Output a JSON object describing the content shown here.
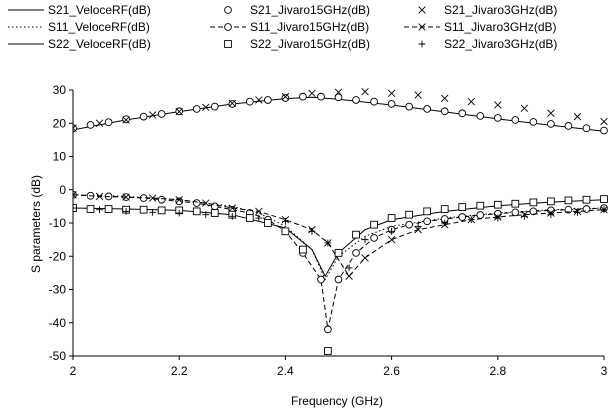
{
  "chart_data": {
    "type": "line",
    "title": "",
    "xlabel": "Frequency (GHz)",
    "ylabel": "S parameters (dB)",
    "xlim": [
      2,
      3
    ],
    "ylim": [
      -50,
      30
    ],
    "x_ticks": [
      "2",
      "2.2",
      "2.4",
      "2.6",
      "2.8",
      "3"
    ],
    "y_ticks": [
      "30",
      "20",
      "10",
      "0",
      "-10",
      "-20",
      "-30",
      "-40",
      "-50"
    ],
    "legend_position": "top",
    "colors": {
      "ink": "#000000",
      "background": "#ffffff"
    },
    "series": [
      {
        "name": "S21_VeloceRF(dB)",
        "style": "solid-line",
        "points": [
          [
            2.0,
            18
          ],
          [
            2.1,
            21
          ],
          [
            2.2,
            23.5
          ],
          [
            2.3,
            25.8
          ],
          [
            2.4,
            27.4
          ],
          [
            2.45,
            27.8
          ],
          [
            2.5,
            27.2
          ],
          [
            2.6,
            25.5
          ],
          [
            2.7,
            23.4
          ],
          [
            2.8,
            21.3
          ],
          [
            2.9,
            19.4
          ],
          [
            3.0,
            17.6
          ]
        ]
      },
      {
        "name": "S11_VeloceRF(dB)",
        "style": "dotted-line",
        "points": [
          [
            2.0,
            -1.5
          ],
          [
            2.1,
            -2
          ],
          [
            2.2,
            -3
          ],
          [
            2.3,
            -5
          ],
          [
            2.35,
            -7
          ],
          [
            2.4,
            -11
          ],
          [
            2.45,
            -18
          ],
          [
            2.475,
            -27
          ],
          [
            2.5,
            -20
          ],
          [
            2.55,
            -14
          ],
          [
            2.6,
            -11
          ],
          [
            2.7,
            -8.5
          ],
          [
            2.8,
            -7
          ],
          [
            2.9,
            -6
          ],
          [
            3.0,
            -5.5
          ]
        ]
      },
      {
        "name": "S22_VeloceRF(dB)",
        "style": "solid-line",
        "points": [
          [
            2.0,
            -5.5
          ],
          [
            2.1,
            -5.8
          ],
          [
            2.2,
            -6.2
          ],
          [
            2.3,
            -7.5
          ],
          [
            2.4,
            -11.5
          ],
          [
            2.45,
            -18
          ],
          [
            2.475,
            -26
          ],
          [
            2.5,
            -19
          ],
          [
            2.55,
            -12
          ],
          [
            2.6,
            -9
          ],
          [
            2.7,
            -6.5
          ],
          [
            2.8,
            -4.8
          ],
          [
            2.9,
            -3.7
          ],
          [
            3.0,
            -3
          ]
        ]
      },
      {
        "name": "S21_Jivaro15GHz(dB)",
        "style": "circle-markers",
        "points": [
          [
            2.0,
            18.5
          ],
          [
            2.033,
            19.5
          ],
          [
            2.067,
            20.3
          ],
          [
            2.1,
            21.2
          ],
          [
            2.133,
            22
          ],
          [
            2.167,
            22.8
          ],
          [
            2.2,
            23.6
          ],
          [
            2.233,
            24.3
          ],
          [
            2.267,
            25
          ],
          [
            2.3,
            25.8
          ],
          [
            2.333,
            26.5
          ],
          [
            2.367,
            27
          ],
          [
            2.4,
            27.6
          ],
          [
            2.433,
            28
          ],
          [
            2.467,
            28
          ],
          [
            2.5,
            27.8
          ],
          [
            2.533,
            27
          ],
          [
            2.567,
            26.5
          ],
          [
            2.6,
            25.8
          ],
          [
            2.633,
            25
          ],
          [
            2.667,
            24.3
          ],
          [
            2.7,
            23.6
          ],
          [
            2.733,
            23
          ],
          [
            2.767,
            22.2
          ],
          [
            2.8,
            21.6
          ],
          [
            2.833,
            21
          ],
          [
            2.867,
            20.4
          ],
          [
            2.9,
            19.8
          ],
          [
            2.933,
            19.2
          ],
          [
            2.967,
            18.5
          ],
          [
            3.0,
            17.8
          ]
        ]
      },
      {
        "name": "S11_Jivaro15GHz(dB)",
        "style": "dashed-line-circle-markers",
        "points": [
          [
            2.0,
            -1.5
          ],
          [
            2.033,
            -1.8
          ],
          [
            2.067,
            -2
          ],
          [
            2.1,
            -2.2
          ],
          [
            2.133,
            -2.5
          ],
          [
            2.167,
            -3
          ],
          [
            2.2,
            -3.5
          ],
          [
            2.233,
            -4
          ],
          [
            2.267,
            -5
          ],
          [
            2.3,
            -6
          ],
          [
            2.333,
            -7
          ],
          [
            2.367,
            -9
          ],
          [
            2.4,
            -12.5
          ],
          [
            2.433,
            -19
          ],
          [
            2.467,
            -27
          ],
          [
            2.48,
            -42
          ],
          [
            2.5,
            -27
          ],
          [
            2.533,
            -19
          ],
          [
            2.567,
            -14.5
          ],
          [
            2.6,
            -12
          ],
          [
            2.633,
            -10.5
          ],
          [
            2.667,
            -9.5
          ],
          [
            2.7,
            -8.8
          ],
          [
            2.733,
            -8.2
          ],
          [
            2.767,
            -7.6
          ],
          [
            2.8,
            -7.2
          ],
          [
            2.833,
            -6.8
          ],
          [
            2.867,
            -6.5
          ],
          [
            2.9,
            -6.2
          ],
          [
            2.933,
            -6
          ],
          [
            2.967,
            -5.8
          ],
          [
            3.0,
            -5.5
          ]
        ]
      },
      {
        "name": "S22_Jivaro15GHz(dB)",
        "style": "square-markers",
        "points": [
          [
            2.0,
            -5.5
          ],
          [
            2.033,
            -5.8
          ],
          [
            2.067,
            -5.8
          ],
          [
            2.1,
            -6
          ],
          [
            2.133,
            -6
          ],
          [
            2.167,
            -6.2
          ],
          [
            2.2,
            -6.2
          ],
          [
            2.233,
            -6.5
          ],
          [
            2.267,
            -7
          ],
          [
            2.3,
            -7.5
          ],
          [
            2.333,
            -8.5
          ],
          [
            2.367,
            -10
          ],
          [
            2.4,
            -12.5
          ],
          [
            2.433,
            -18
          ],
          [
            2.48,
            -48.5
          ],
          [
            2.5,
            -19
          ],
          [
            2.533,
            -13.5
          ],
          [
            2.567,
            -10.5
          ],
          [
            2.6,
            -8.5
          ],
          [
            2.633,
            -7.5
          ],
          [
            2.667,
            -6.5
          ],
          [
            2.7,
            -5.8
          ],
          [
            2.733,
            -5.2
          ],
          [
            2.767,
            -4.8
          ],
          [
            2.8,
            -4.5
          ],
          [
            2.833,
            -4.2
          ],
          [
            2.867,
            -3.8
          ],
          [
            2.9,
            -3.5
          ],
          [
            2.933,
            -3.2
          ],
          [
            2.967,
            -3
          ],
          [
            3.0,
            -2.8
          ]
        ]
      },
      {
        "name": "S21_Jivaro3GHz(dB)",
        "style": "x-markers",
        "points": [
          [
            2.0,
            18.5
          ],
          [
            2.05,
            20
          ],
          [
            2.1,
            21
          ],
          [
            2.15,
            22.5
          ],
          [
            2.2,
            23.5
          ],
          [
            2.25,
            24.8
          ],
          [
            2.3,
            26
          ],
          [
            2.35,
            27
          ],
          [
            2.4,
            28
          ],
          [
            2.45,
            29
          ],
          [
            2.5,
            29.3
          ],
          [
            2.55,
            29.5
          ],
          [
            2.6,
            29
          ],
          [
            2.65,
            28.5
          ],
          [
            2.7,
            27.5
          ],
          [
            2.75,
            26.5
          ],
          [
            2.8,
            25.5
          ],
          [
            2.85,
            24.5
          ],
          [
            2.9,
            23
          ],
          [
            2.95,
            22
          ],
          [
            3.0,
            20.5
          ]
        ]
      },
      {
        "name": "S11_Jivaro3GHz(dB)",
        "style": "dashed-line-x-markers",
        "points": [
          [
            2.0,
            -1.5
          ],
          [
            2.05,
            -2
          ],
          [
            2.1,
            -2.2
          ],
          [
            2.15,
            -2.5
          ],
          [
            2.2,
            -3
          ],
          [
            2.25,
            -4
          ],
          [
            2.3,
            -5.5
          ],
          [
            2.35,
            -6.5
          ],
          [
            2.4,
            -9
          ],
          [
            2.45,
            -12
          ],
          [
            2.48,
            -16
          ],
          [
            2.52,
            -26
          ],
          [
            2.55,
            -20.5
          ],
          [
            2.6,
            -15
          ],
          [
            2.65,
            -12
          ],
          [
            2.7,
            -10.5
          ],
          [
            2.75,
            -9
          ],
          [
            2.8,
            -8.2
          ],
          [
            2.85,
            -7.5
          ],
          [
            2.9,
            -7
          ],
          [
            2.95,
            -6.5
          ],
          [
            3.0,
            -6
          ]
        ]
      },
      {
        "name": "S22_Jivaro3GHz(dB)",
        "style": "plus-markers",
        "points": [
          [
            2.0,
            -5.5
          ],
          [
            2.05,
            -6
          ],
          [
            2.1,
            -6.5
          ],
          [
            2.15,
            -6.8
          ],
          [
            2.2,
            -7
          ],
          [
            2.25,
            -7.5
          ],
          [
            2.3,
            -8
          ],
          [
            2.35,
            -8.5
          ],
          [
            2.4,
            -9.5
          ],
          [
            2.45,
            -12.5
          ],
          [
            2.48,
            -16
          ],
          [
            2.52,
            -23.5
          ],
          [
            2.55,
            -15
          ],
          [
            2.6,
            -12.5
          ],
          [
            2.65,
            -11
          ],
          [
            2.7,
            -10
          ],
          [
            2.75,
            -9
          ],
          [
            2.8,
            -8.5
          ],
          [
            2.85,
            -8
          ],
          [
            2.9,
            -7.5
          ],
          [
            2.95,
            -6.8
          ],
          [
            3.0,
            -6
          ]
        ]
      }
    ]
  }
}
